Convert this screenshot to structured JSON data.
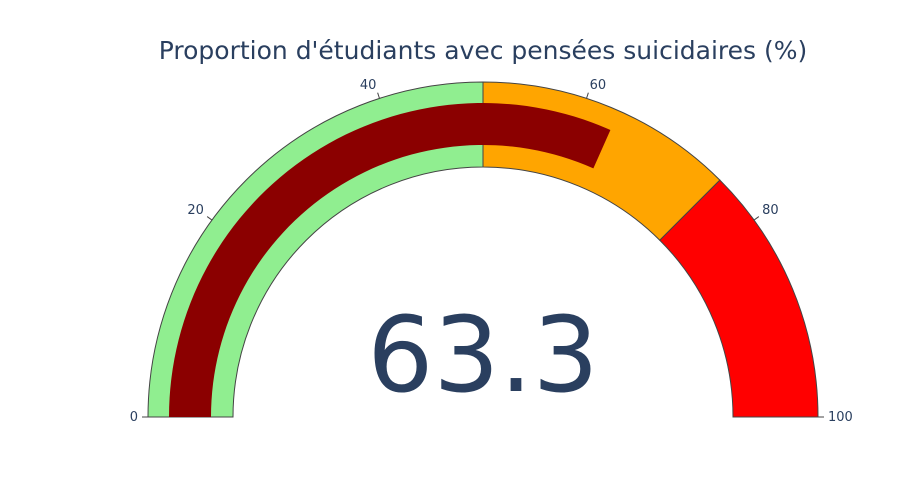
{
  "chart_data": {
    "type": "gauge",
    "title": "Proportion d'étudiants avec pensées suicidaires (%)",
    "value": 63.3,
    "value_text": "63.3",
    "range": [
      0,
      100
    ],
    "ticks": [
      {
        "value": 0,
        "label": "0"
      },
      {
        "value": 20,
        "label": "20"
      },
      {
        "value": 40,
        "label": "40"
      },
      {
        "value": 60,
        "label": "60"
      },
      {
        "value": 80,
        "label": "80"
      },
      {
        "value": 100,
        "label": "100"
      }
    ],
    "steps": [
      {
        "range": [
          0,
          50
        ],
        "color": "#90ee90"
      },
      {
        "range": [
          50,
          75
        ],
        "color": "#ffa500"
      },
      {
        "range": [
          75,
          100
        ],
        "color": "#ff0000"
      }
    ],
    "bar_color": "#8b0000",
    "text_color": "#2a3f5f"
  }
}
